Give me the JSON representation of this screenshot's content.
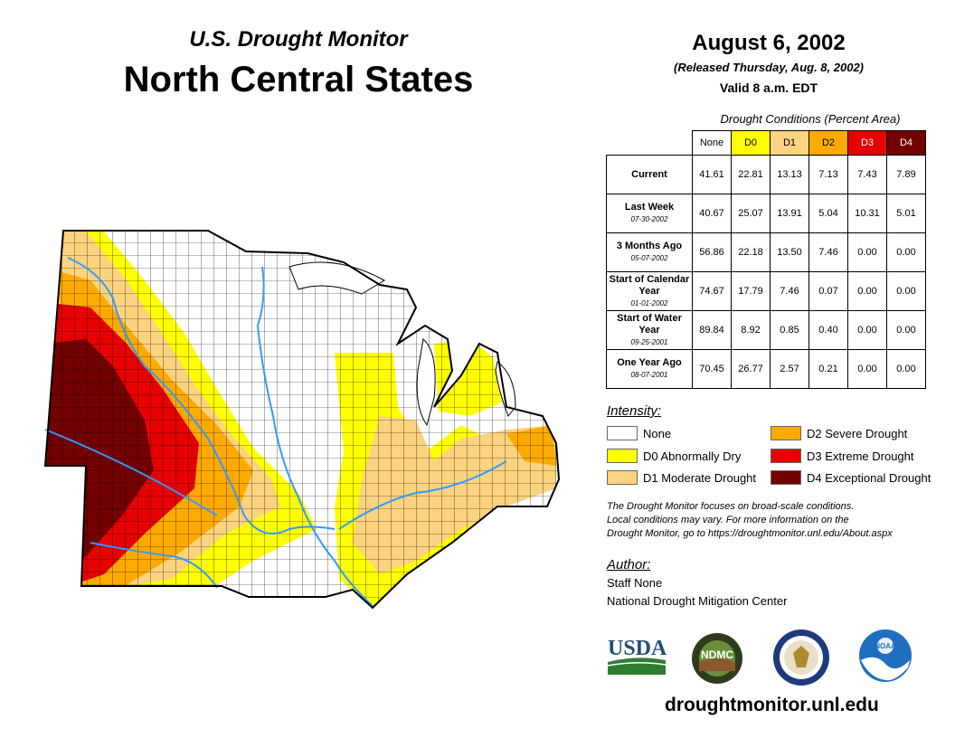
{
  "header": {
    "super_title": "U.S. Drought Monitor",
    "title": "North Central States",
    "date": "August 6, 2002",
    "released": "(Released Thursday, Aug. 8, 2002)",
    "valid": "Valid 8 a.m. EDT"
  },
  "table": {
    "caption": "Drought Conditions (Percent Area)",
    "columns": [
      {
        "label": "None",
        "color": "#ffffff",
        "text_color": "#000000"
      },
      {
        "label": "D0",
        "color": "#ffff00",
        "text_color": "#000000"
      },
      {
        "label": "D1",
        "color": "#fcd37f",
        "text_color": "#000000"
      },
      {
        "label": "D2",
        "color": "#ffaa00",
        "text_color": "#000000"
      },
      {
        "label": "D3",
        "color": "#e60000",
        "text_color": "#ffffff"
      },
      {
        "label": "D4",
        "color": "#730000",
        "text_color": "#ffffff"
      }
    ],
    "rows": [
      {
        "label": "Current",
        "date": "",
        "values": [
          "41.61",
          "22.81",
          "13.13",
          "7.13",
          "7.43",
          "7.89"
        ]
      },
      {
        "label": "Last Week",
        "date": "07-30-2002",
        "values": [
          "40.67",
          "25.07",
          "13.91",
          "5.04",
          "10.31",
          "5.01"
        ]
      },
      {
        "label": "3 Months Ago",
        "date": "05-07-2002",
        "values": [
          "56.86",
          "22.18",
          "13.50",
          "7.46",
          "0.00",
          "0.00"
        ]
      },
      {
        "label": "Start of Calendar Year",
        "date": "01-01-2002",
        "values": [
          "74.67",
          "17.79",
          "7.46",
          "0.07",
          "0.00",
          "0.00"
        ]
      },
      {
        "label": "Start of Water Year",
        "date": "09-25-2001",
        "values": [
          "89.84",
          "8.92",
          "0.85",
          "0.40",
          "0.00",
          "0.00"
        ]
      },
      {
        "label": "One Year Ago",
        "date": "08-07-2001",
        "values": [
          "70.45",
          "26.77",
          "2.57",
          "0.21",
          "0.00",
          "0.00"
        ]
      }
    ]
  },
  "legend": {
    "title": "Intensity:",
    "items": [
      {
        "label": "None",
        "color": "#ffffff"
      },
      {
        "label": "D0 Abnormally Dry",
        "color": "#ffff00"
      },
      {
        "label": "D1 Moderate Drought",
        "color": "#fcd37f"
      },
      {
        "label": "D2 Severe Drought",
        "color": "#ffaa00"
      },
      {
        "label": "D3 Extreme Drought",
        "color": "#e60000"
      },
      {
        "label": "D4 Exceptional Drought",
        "color": "#730000"
      }
    ]
  },
  "disclaimer": {
    "line1": "The Drought Monitor focuses on broad-scale conditions.",
    "line2": "Local conditions may vary. For more information on the",
    "line3": "Drought Monitor, go to https://droughtmonitor.unl.edu/About.aspx"
  },
  "author": {
    "title": "Author:",
    "name": "Staff None",
    "org": "National Drought Mitigation Center"
  },
  "logos": {
    "usda": "USDA",
    "ndmc": "NDMC",
    "noaa": "NOAA"
  },
  "footer": {
    "site": "droughtmonitor.unl.edu"
  },
  "map": {
    "water_color": "#3399ff",
    "county_line_color": "#000000"
  }
}
